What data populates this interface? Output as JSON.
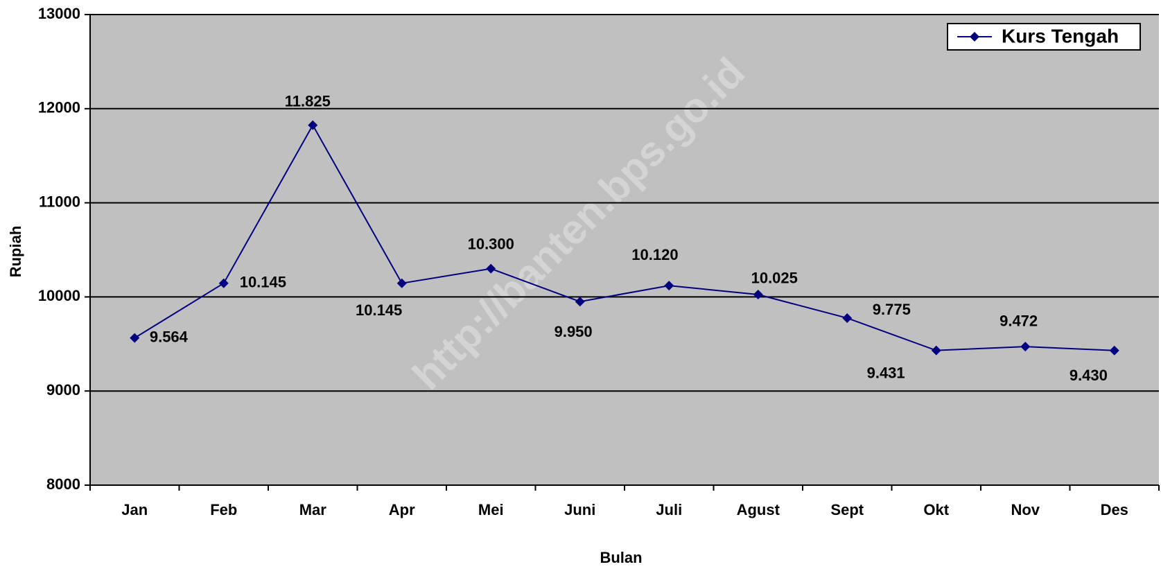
{
  "chart_data": {
    "type": "line",
    "watermark": "http://banten.bps.go.id",
    "x_label": "Bulan",
    "y_label": "Rupiah",
    "categories": [
      "Jan",
      "Feb",
      "Mar",
      "Apr",
      "Mei",
      "Juni",
      "Juli",
      "Agust",
      "Sept",
      "Okt",
      "Nov",
      "Des"
    ],
    "series": [
      {
        "name": "Kurs Tengah",
        "color": "#000080",
        "values": [
          9564,
          10145,
          11825,
          10145,
          10300,
          9950,
          10120,
          10025,
          9775,
          9431,
          9472,
          9430
        ],
        "value_labels": [
          "9.564",
          "10.145",
          "11.825",
          "10.145",
          "10.300",
          "9.950",
          "10.120",
          "10.025",
          "9.775",
          "9.431",
          "9.472",
          "9.430"
        ]
      }
    ],
    "ylim": [
      8000,
      13000
    ],
    "yticks": [
      8000,
      9000,
      10000,
      11000,
      12000,
      13000
    ],
    "grid": true,
    "legend": "upper right",
    "background": "#c0c0c0"
  }
}
